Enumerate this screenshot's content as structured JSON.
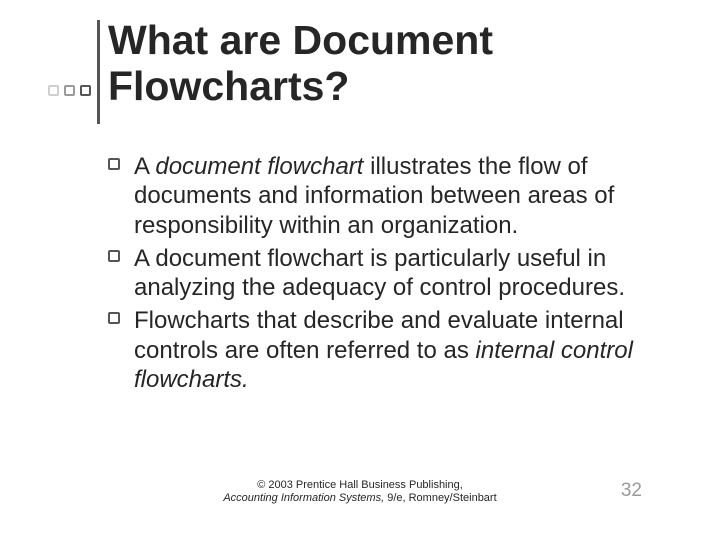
{
  "title": "What are Document Flowcharts?",
  "ornament": {
    "dot_colors": [
      "#cfcfcf",
      "#9a9a9a",
      "#555555"
    ],
    "line_color": "#555555"
  },
  "bullets": [
    {
      "html": "A <i>document flowchart</i> illustrates the flow of documents and information between areas of responsibility within an organization."
    },
    {
      "html": "A document flowchart is particularly useful in analyzing the adequacy of control procedures."
    },
    {
      "html": "Flowcharts that describe and evaluate internal controls are often referred to as <i>internal control flowcharts.</i>"
    }
  ],
  "footer": {
    "line1": "© 2003 Prentice Hall Business Publishing,",
    "line2_italic": "Accounting Information Systems,",
    "line2_rest": " 9/e, Romney/Steinbart"
  },
  "page_number": "32",
  "page_number_color": "#9a9a9a",
  "text_color": "#262626",
  "background_color": "#ffffff"
}
